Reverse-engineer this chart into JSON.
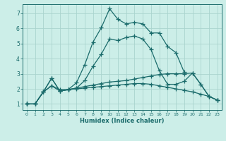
{
  "title": "",
  "xlabel": "Humidex (Indice chaleur)",
  "bg_color": "#cceee8",
  "line_color": "#1a6b6b",
  "grid_color": "#aad4ce",
  "xlim": [
    -0.5,
    23.5
  ],
  "ylim": [
    0.6,
    7.6
  ],
  "xticks": [
    0,
    1,
    2,
    3,
    4,
    5,
    6,
    7,
    8,
    9,
    10,
    11,
    12,
    13,
    14,
    15,
    16,
    17,
    18,
    19,
    20,
    21,
    22,
    23
  ],
  "yticks": [
    1,
    2,
    3,
    4,
    5,
    6,
    7
  ],
  "series": [
    {
      "x": [
        0,
        1,
        2,
        3,
        4,
        5,
        6,
        7,
        8,
        9,
        10,
        11,
        12,
        13,
        14,
        15,
        16,
        17,
        18,
        19,
        20,
        21,
        22,
        23
      ],
      "y": [
        1.0,
        1.0,
        1.8,
        2.7,
        1.85,
        1.95,
        2.05,
        2.55,
        3.5,
        4.3,
        5.3,
        5.2,
        5.4,
        5.5,
        5.3,
        4.6,
        3.2,
        2.3,
        2.3,
        2.5,
        3.05,
        2.3,
        1.5,
        1.25
      ]
    },
    {
      "x": [
        0,
        1,
        2,
        3,
        4,
        5,
        6,
        7,
        8,
        9,
        10,
        11,
        12,
        13,
        14,
        15,
        16,
        17,
        18,
        19
      ],
      "y": [
        1.0,
        1.0,
        1.8,
        2.7,
        1.85,
        1.95,
        2.4,
        3.6,
        5.1,
        6.05,
        7.3,
        6.6,
        6.3,
        6.4,
        6.3,
        5.7,
        5.7,
        4.8,
        4.4,
        3.1
      ]
    },
    {
      "x": [
        0,
        1,
        2,
        3,
        4,
        5,
        6,
        7,
        8,
        9,
        10,
        11,
        12,
        13,
        14,
        15,
        16,
        17,
        18,
        19,
        20,
        21,
        22,
        23
      ],
      "y": [
        1.0,
        1.0,
        1.8,
        2.2,
        1.85,
        1.95,
        2.0,
        2.05,
        2.1,
        2.15,
        2.2,
        2.25,
        2.3,
        2.35,
        2.35,
        2.3,
        2.2,
        2.1,
        2.0,
        1.9,
        1.8,
        1.65,
        1.5,
        1.25
      ]
    },
    {
      "x": [
        0,
        1,
        2,
        3,
        4,
        5,
        6,
        7,
        8,
        9,
        10,
        11,
        12,
        13,
        14,
        15,
        16,
        17,
        18,
        19,
        20,
        21,
        22,
        23
      ],
      "y": [
        1.0,
        1.0,
        1.8,
        2.2,
        1.95,
        1.95,
        2.05,
        2.15,
        2.25,
        2.35,
        2.45,
        2.5,
        2.55,
        2.65,
        2.75,
        2.85,
        2.95,
        3.0,
        3.0,
        3.0,
        3.05,
        2.3,
        1.5,
        1.25
      ]
    }
  ]
}
